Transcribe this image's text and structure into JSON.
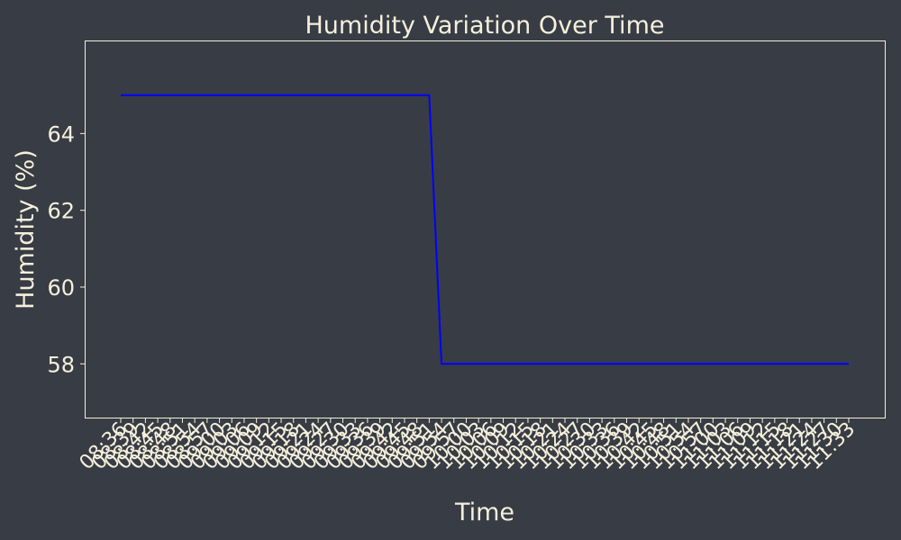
{
  "colors": {
    "background": "#383c44",
    "text": "#f5f0dc",
    "line": "#0000ff",
    "axes": "#f5f0dc"
  },
  "chart_data": {
    "type": "line",
    "title": "Humidity Variation Over Time",
    "xlabel": "Time",
    "ylabel": "Humidity (%)",
    "ylim": [
      56.6,
      66.4
    ],
    "yticks": [
      58,
      60,
      62,
      64
    ],
    "grid": false,
    "x": [
      "08:36",
      "08:39",
      "08:42",
      "08:45",
      "08:48",
      "08:51",
      "08:54",
      "08:57",
      "09:00",
      "09:03",
      "09:06",
      "09:09",
      "09:12",
      "09:15",
      "09:18",
      "09:21",
      "09:24",
      "09:27",
      "09:30",
      "09:33",
      "09:36",
      "09:39",
      "09:42",
      "09:45",
      "09:48",
      "09:51",
      "09:54",
      "09:57",
      "10:00",
      "10:03",
      "10:06",
      "10:09",
      "10:12",
      "10:15",
      "10:18",
      "10:21",
      "10:24",
      "10:27",
      "10:30",
      "10:33",
      "10:36",
      "10:39",
      "10:42",
      "10:45",
      "10:48",
      "10:51",
      "10:54",
      "10:57",
      "11:00",
      "11:03",
      "11:06",
      "11:09",
      "11:12",
      "11:15",
      "11:18",
      "11:21",
      "11:24",
      "11:27",
      "11:30",
      "11:33"
    ],
    "series": [
      {
        "values": [
          65,
          65,
          65,
          65,
          65,
          65,
          65,
          65,
          65,
          65,
          65,
          65,
          65,
          65,
          65,
          65,
          65,
          65,
          65,
          65,
          65,
          65,
          65,
          65,
          65,
          65,
          58,
          58,
          58,
          58,
          58,
          58,
          58,
          58,
          58,
          58,
          58,
          58,
          58,
          58,
          58,
          58,
          58,
          58,
          58,
          58,
          58,
          58,
          58,
          58,
          58,
          58,
          58,
          58,
          58,
          58,
          58,
          58,
          58,
          58
        ]
      }
    ]
  }
}
